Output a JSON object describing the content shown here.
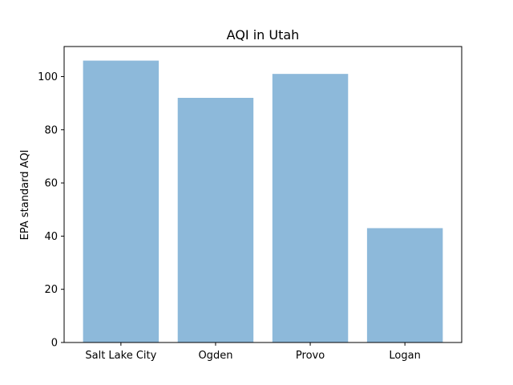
{
  "chart_data": {
    "type": "bar",
    "title": "AQI in Utah",
    "xlabel": "",
    "ylabel": "EPA standard AQI",
    "categories": [
      "Salt Lake City",
      "Ogden",
      "Provo",
      "Logan"
    ],
    "values": [
      106,
      92,
      101,
      43
    ],
    "ylim": [
      0,
      111.3
    ],
    "yticks": [
      0,
      20,
      40,
      60,
      80,
      100
    ],
    "bar_color": "#8db9da",
    "grid": false,
    "legend": "none"
  }
}
